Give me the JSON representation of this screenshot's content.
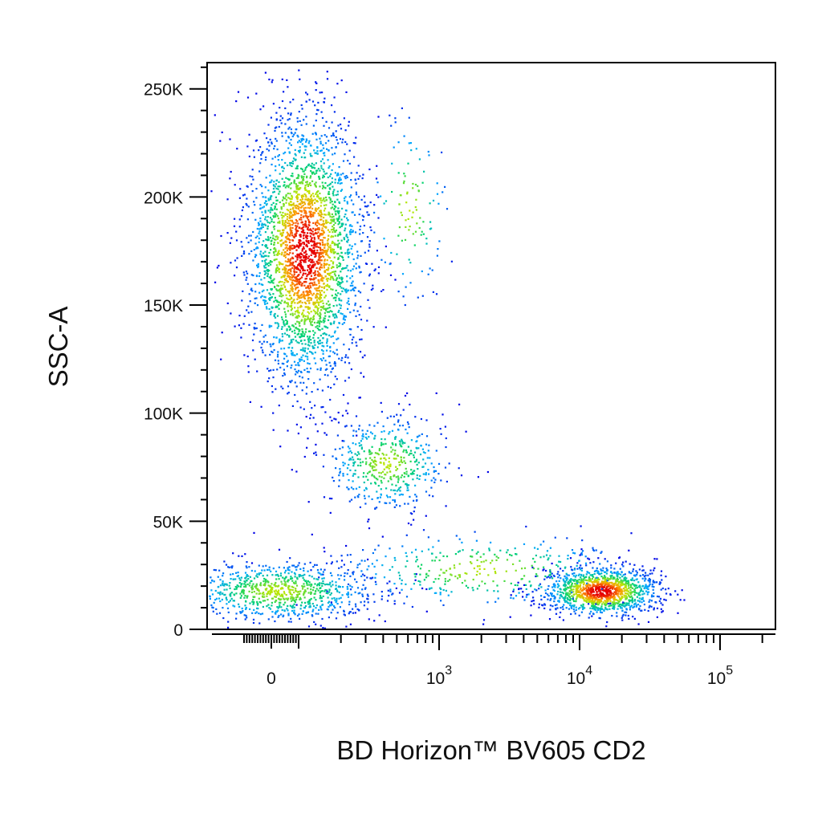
{
  "chart_data": {
    "type": "scatter",
    "title": "",
    "xlabel": "BD Horizon™ BV605 CD2",
    "ylabel": "SSC-A",
    "x_scale": "biexponential",
    "xlim": [
      -150,
      250000
    ],
    "ylim": [
      0,
      262144
    ],
    "x_ticks": [
      {
        "value": 0,
        "base": "0",
        "exp": ""
      },
      {
        "value": 1000,
        "base": "10",
        "exp": "3"
      },
      {
        "value": 10000,
        "base": "10",
        "exp": "4"
      },
      {
        "value": 100000,
        "base": "10",
        "exp": "5"
      }
    ],
    "y_ticks": [
      {
        "value": 0,
        "label": "0"
      },
      {
        "value": 50000,
        "label": "50K"
      },
      {
        "value": 100000,
        "label": "100K"
      },
      {
        "value": 150000,
        "label": "150K"
      },
      {
        "value": 200000,
        "label": "200K"
      },
      {
        "value": 250000,
        "label": "250K"
      }
    ],
    "grid": false,
    "legend": "none",
    "color_map": "density (blue → cyan → green → yellow → red)",
    "populations": [
      {
        "cx": 25,
        "cy": 18000,
        "sx_dec": 0.35,
        "sy": 7000,
        "n": 900
      },
      {
        "cx": 110,
        "cy": 175000,
        "sx_dec": 0.2,
        "sy": 30000,
        "n": 3000
      },
      {
        "cx": 420,
        "cy": 77000,
        "sx_dec": 0.22,
        "sy": 11000,
        "n": 500
      },
      {
        "cx": 14000,
        "cy": 18000,
        "sx_dec": 0.2,
        "sy": 5500,
        "n": 1300
      },
      {
        "cx": 600,
        "cy": 195000,
        "sx_dec": 0.15,
        "sy": 22000,
        "n": 120
      },
      {
        "cx": 2000,
        "cy": 28000,
        "sx_dec": 0.55,
        "sy": 9000,
        "n": 350
      }
    ]
  }
}
